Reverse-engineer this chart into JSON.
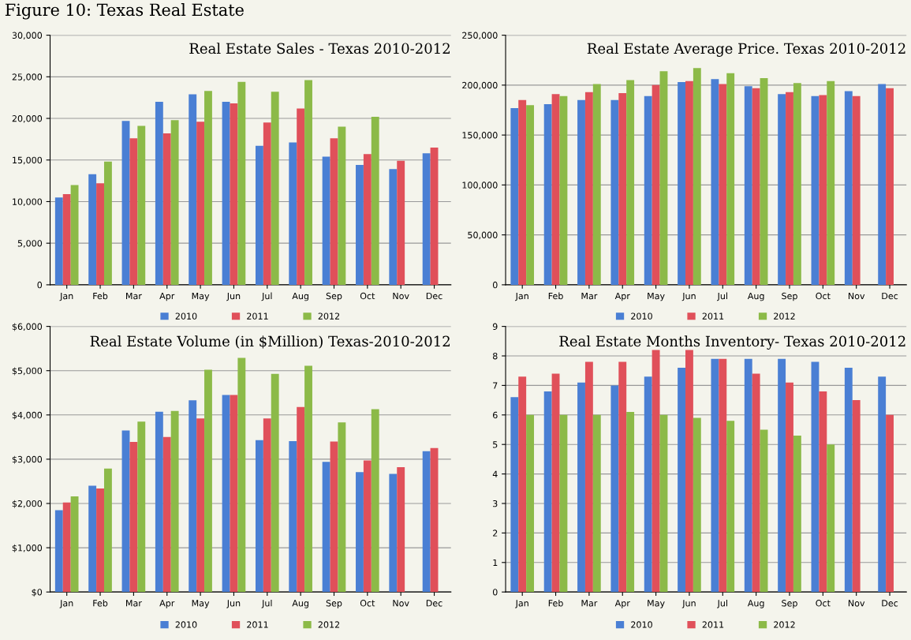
{
  "chart_data": [
    {
      "type": "bar",
      "title": "Real Estate Sales - Texas 2010-2012",
      "annotations": [
        "Figure 10: Texas Real Estate"
      ],
      "categories": [
        "Jan",
        "Feb",
        "Mar",
        "Apr",
        "May",
        "Jun",
        "Jul",
        "Aug",
        "Sep",
        "Oct",
        "Nov",
        "Dec"
      ],
      "series": [
        {
          "name": "2010",
          "color": "#4a7fd4",
          "values": [
            10500,
            13300,
            19700,
            22000,
            22900,
            22000,
            16700,
            17100,
            15400,
            14400,
            13900,
            15800
          ]
        },
        {
          "name": "2011",
          "color": "#e0505a",
          "values": [
            10900,
            12200,
            17600,
            18200,
            19600,
            21800,
            19500,
            21200,
            17600,
            15700,
            14900,
            16500
          ]
        },
        {
          "name": "2012",
          "color": "#8cba48",
          "values": [
            12000,
            14800,
            19100,
            19800,
            23300,
            24400,
            23200,
            24600,
            19000,
            20200,
            null,
            null
          ]
        }
      ],
      "ylim": [
        0,
        30000
      ],
      "yticks": [
        0,
        {
          "value": 5000,
          "label": "5,000"
        },
        {
          "value": 10000,
          "label": "10,000"
        },
        {
          "value": 15000,
          "label": "15,000"
        },
        {
          "value": 20000,
          "label": "20,000"
        },
        {
          "value": 25000,
          "label": "25,000"
        },
        {
          "value": 30000,
          "label": "30,000"
        }
      ],
      "grid": "y",
      "legend": "bottom"
    },
    {
      "type": "bar",
      "title": "Real Estate Average Price. Texas 2010-2012",
      "categories": [
        "Jan",
        "Feb",
        "Mar",
        "Apr",
        "May",
        "Jun",
        "Jul",
        "Aug",
        "Sep",
        "Oct",
        "Nov",
        "Dec"
      ],
      "series": [
        {
          "name": "2010",
          "color": "#4a7fd4",
          "values": [
            177000,
            181000,
            185000,
            185000,
            189000,
            203000,
            206000,
            199000,
            191000,
            189000,
            194000,
            201000
          ]
        },
        {
          "name": "2011",
          "color": "#e0505a",
          "values": [
            185000,
            191000,
            193000,
            192000,
            200000,
            204000,
            201000,
            197000,
            193000,
            190000,
            189000,
            197000
          ]
        },
        {
          "name": "2012",
          "color": "#8cba48",
          "values": [
            180000,
            189000,
            201000,
            205000,
            214000,
            217000,
            212000,
            207000,
            202000,
            204000,
            null,
            null
          ]
        }
      ],
      "ylim": [
        0,
        250000
      ],
      "yticks": [
        0,
        {
          "value": 50000,
          "label": "50,000"
        },
        {
          "value": 100000,
          "label": "100,000"
        },
        {
          "value": 150000,
          "label": "150,000"
        },
        {
          "value": 200000,
          "label": "200,000"
        },
        {
          "value": 250000,
          "label": "250,000"
        }
      ],
      "grid": "y",
      "legend": "bottom"
    },
    {
      "type": "bar",
      "title": "Real Estate Volume (in $Million) Texas-2010-2012",
      "categories": [
        "Jan",
        "Feb",
        "Mar",
        "Apr",
        "May",
        "Jun",
        "Jul",
        "Aug",
        "Sep",
        "Oct",
        "Nov",
        "Dec"
      ],
      "series": [
        {
          "name": "2010",
          "color": "#4a7fd4",
          "values": [
            1850,
            2400,
            3650,
            4070,
            4330,
            4450,
            3430,
            3410,
            2940,
            2710,
            2670,
            3180
          ]
        },
        {
          "name": "2011",
          "color": "#e0505a",
          "values": [
            2020,
            2340,
            3390,
            3500,
            3920,
            4450,
            3920,
            4180,
            3400,
            2970,
            2820,
            3250
          ]
        },
        {
          "name": "2012",
          "color": "#8cba48",
          "values": [
            2160,
            2790,
            3850,
            4090,
            5020,
            5290,
            4930,
            5110,
            3830,
            4130,
            null,
            null
          ]
        }
      ],
      "ylim": [
        0,
        6000
      ],
      "yticks": [
        {
          "value": 0,
          "label": "$0"
        },
        {
          "value": 1000,
          "label": "$1,000"
        },
        {
          "value": 2000,
          "label": "$2,000"
        },
        {
          "value": 3000,
          "label": "$3,000"
        },
        {
          "value": 4000,
          "label": "$4,000"
        },
        {
          "value": 5000,
          "label": "$5,000"
        },
        {
          "value": 6000,
          "label": "$6,000"
        }
      ],
      "grid": "y",
      "legend": "bottom"
    },
    {
      "type": "bar",
      "title": "Real Estate Months Inventory- Texas 2010-2012",
      "categories": [
        "Jan",
        "Feb",
        "Mar",
        "Apr",
        "May",
        "Jun",
        "Jul",
        "Aug",
        "Sep",
        "Oct",
        "Nov",
        "Dec"
      ],
      "series": [
        {
          "name": "2010",
          "color": "#4a7fd4",
          "values": [
            6.6,
            6.8,
            7.1,
            7.0,
            7.3,
            7.6,
            7.9,
            7.9,
            7.9,
            7.8,
            7.6,
            7.3
          ]
        },
        {
          "name": "2011",
          "color": "#e0505a",
          "values": [
            7.3,
            7.4,
            7.8,
            7.8,
            8.2,
            8.2,
            7.9,
            7.4,
            7.1,
            6.8,
            6.5,
            6.0
          ]
        },
        {
          "name": "2012",
          "color": "#8cba48",
          "values": [
            6.0,
            6.0,
            6.0,
            6.1,
            6.0,
            5.9,
            5.8,
            5.5,
            5.3,
            5.0,
            null,
            null
          ]
        }
      ],
      "ylim": [
        0,
        9
      ],
      "yticks": [
        0,
        1,
        2,
        3,
        4,
        5,
        6,
        7,
        8,
        9
      ],
      "grid": "y",
      "legend": "bottom"
    }
  ]
}
